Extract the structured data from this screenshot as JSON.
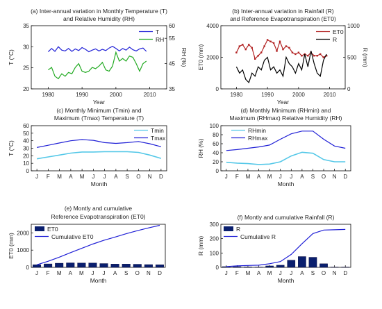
{
  "chart_data": [
    {
      "id": "a",
      "type": "line",
      "title": "(a) Inter-annual variation in Monthly Temperature (T)",
      "subtitle": "and Relative Humidity (RH)",
      "xlabel": "Year",
      "ylabel": "T (°C)",
      "ylabel_right": "RH (%)",
      "xlim": [
        1975,
        2015
      ],
      "ylim": [
        20,
        35
      ],
      "ylim_right": [
        35,
        60
      ],
      "xticks": [
        1980,
        1990,
        2000,
        2010
      ],
      "yticks": [
        20,
        25,
        30,
        35
      ],
      "yticks_right": [
        35,
        45,
        55,
        60
      ],
      "x": [
        1980,
        1981,
        1982,
        1983,
        1984,
        1985,
        1986,
        1987,
        1988,
        1989,
        1990,
        1991,
        1992,
        1993,
        1994,
        1995,
        1996,
        1997,
        1998,
        1999,
        2000,
        2001,
        2002,
        2003,
        2004,
        2005,
        2006,
        2007,
        2008,
        2009
      ],
      "series": [
        {
          "name": "T",
          "axis": "left",
          "color": "#1f1fd6",
          "values": [
            28.8,
            29.6,
            28.9,
            30.0,
            29.2,
            29.0,
            29.6,
            28.9,
            29.5,
            29.1,
            29.8,
            29.4,
            28.8,
            29.2,
            29.5,
            29.0,
            29.4,
            29.1,
            29.7,
            30.1,
            29.6,
            29.0,
            29.6,
            29.2,
            29.9,
            29.3,
            29.0,
            29.5,
            29.7,
            28.9
          ]
        },
        {
          "name": "RH",
          "axis": "right",
          "color": "#22aa22",
          "values": [
            42.5,
            43.5,
            40.0,
            39.0,
            41.0,
            40.0,
            41.5,
            41.0,
            43.5,
            45.0,
            42.0,
            41.5,
            42.0,
            43.5,
            43.0,
            44.0,
            45.5,
            42.5,
            42.0,
            44.0,
            49.5,
            46.0,
            47.0,
            46.0,
            48.0,
            47.5,
            45.0,
            42.0,
            45.0,
            46.0
          ]
        }
      ]
    },
    {
      "id": "b",
      "type": "line",
      "title": "(b) Inter-annual variation in Rainfall (R)",
      "subtitle": "and Reference Evapotranspiration (ET0)",
      "xlabel": "Year",
      "ylabel": "ET0 (mm)",
      "ylabel_right": "R (mm)",
      "xlim": [
        1975,
        2015
      ],
      "ylim": [
        0,
        4000
      ],
      "ylim_right": [
        0,
        1000
      ],
      "xticks": [
        1980,
        1990,
        2000,
        2010
      ],
      "yticks": [
        0,
        2000,
        4000
      ],
      "yticks_right": [
        0,
        500,
        1000
      ],
      "x": [
        1980,
        1981,
        1982,
        1983,
        1984,
        1985,
        1986,
        1987,
        1988,
        1989,
        1990,
        1991,
        1992,
        1993,
        1994,
        1995,
        1996,
        1997,
        1998,
        1999,
        2000,
        2001,
        2002,
        2003,
        2004,
        2005,
        2006,
        2007,
        2008,
        2009
      ],
      "series": [
        {
          "name": "ET0",
          "axis": "left",
          "color": "#b22222",
          "values": [
            2300,
            2700,
            2800,
            2500,
            2800,
            2600,
            1900,
            2100,
            2300,
            2700,
            3100,
            3000,
            2900,
            2400,
            3000,
            2500,
            2700,
            2600,
            2300,
            2200,
            2300,
            2100,
            2200,
            2100,
            2300,
            2100,
            2100,
            2200,
            2000,
            2100
          ]
        },
        {
          "name": "R",
          "axis": "right",
          "color": "#000000",
          "values": [
            350,
            250,
            300,
            150,
            100,
            250,
            200,
            350,
            300,
            450,
            500,
            300,
            350,
            250,
            300,
            200,
            500,
            400,
            350,
            250,
            400,
            300,
            550,
            350,
            600,
            400,
            250,
            200,
            450,
            550
          ]
        }
      ]
    },
    {
      "id": "c",
      "type": "line",
      "title": "(c) Monthly Minimum (Tmin) and",
      "subtitle": "Maximum (Tmax) Temperature (T)",
      "xlabel": "Month",
      "ylabel": "T (°C)",
      "ylim": [
        0,
        60
      ],
      "yticks": [
        0,
        10,
        20,
        30,
        40,
        50,
        60
      ],
      "categories": [
        "J",
        "F",
        "M",
        "A",
        "M",
        "J",
        "J",
        "A",
        "S",
        "O",
        "N",
        "D"
      ],
      "series": [
        {
          "name": "Tmin",
          "color": "#55c8e8",
          "values": [
            16.0,
            18.5,
            21.0,
            23.5,
            25.0,
            25.0,
            25.5,
            25.5,
            25.5,
            24.5,
            21.0,
            16.5
          ]
        },
        {
          "name": "Tmax",
          "color": "#1f1fd6",
          "values": [
            31.0,
            34.0,
            37.0,
            40.0,
            41.5,
            40.5,
            37.5,
            36.5,
            37.5,
            39.0,
            36.0,
            32.0
          ]
        }
      ]
    },
    {
      "id": "d",
      "type": "line",
      "title": "(d) Monthly Minimum (RHmin) and",
      "subtitle": "Maximum (RHmax) Relative Humidity (RH)",
      "xlabel": "Month",
      "ylabel": "RH (%)",
      "ylim": [
        0,
        100
      ],
      "yticks": [
        0,
        20,
        40,
        60,
        80,
        100
      ],
      "categories": [
        "J",
        "F",
        "M",
        "A",
        "M",
        "J",
        "J",
        "A",
        "S",
        "O",
        "N",
        "D"
      ],
      "series": [
        {
          "name": "RHmin",
          "color": "#55c8e8",
          "values": [
            19,
            17,
            16,
            14,
            15,
            20,
            33,
            41,
            39,
            25,
            20,
            20
          ]
        },
        {
          "name": "RHmax",
          "color": "#1f1fd6",
          "values": [
            45,
            47,
            50,
            53,
            57,
            70,
            82,
            88,
            88,
            70,
            55,
            50
          ]
        }
      ]
    },
    {
      "id": "e",
      "type": "bar",
      "title": "(e) Montly and cumulative",
      "subtitle": "Reference Evapotranspiration (ET0)",
      "xlabel": "Month",
      "ylabel": "ET0 (mm)",
      "ylim": [
        0,
        2500
      ],
      "yticks": [
        0,
        1000,
        2000
      ],
      "categories": [
        "J",
        "F",
        "M",
        "A",
        "M",
        "J",
        "J",
        "A",
        "S",
        "O",
        "N",
        "D"
      ],
      "series": [
        {
          "name": "ET0",
          "kind": "bar",
          "color": "#0a1f6e",
          "values": [
            150,
            200,
            240,
            260,
            250,
            250,
            220,
            190,
            190,
            180,
            160,
            150
          ]
        },
        {
          "name": "Cumulative ET0",
          "kind": "line",
          "color": "#1f1fd6",
          "values": [
            150,
            350,
            590,
            850,
            1100,
            1350,
            1570,
            1760,
            1950,
            2130,
            2290,
            2440
          ]
        }
      ]
    },
    {
      "id": "f",
      "type": "bar",
      "title": "(f) Montly and cumulative Rainfall (R)",
      "subtitle": "",
      "xlabel": "Month",
      "ylabel": "R (mm)",
      "ylim": [
        0,
        300
      ],
      "yticks": [
        0,
        100,
        200,
        300
      ],
      "categories": [
        "J",
        "F",
        "M",
        "A",
        "M",
        "J",
        "J",
        "A",
        "S",
        "O",
        "N",
        "D"
      ],
      "series": [
        {
          "name": "R",
          "kind": "bar",
          "color": "#0a1f6e",
          "values": [
            5,
            5,
            3,
            2,
            10,
            15,
            50,
            75,
            70,
            25,
            2,
            2
          ]
        },
        {
          "name": "Cumulative R",
          "kind": "line",
          "color": "#1f1fd6",
          "values": [
            5,
            10,
            13,
            15,
            25,
            40,
            90,
            165,
            235,
            260,
            262,
            264
          ]
        }
      ]
    }
  ]
}
